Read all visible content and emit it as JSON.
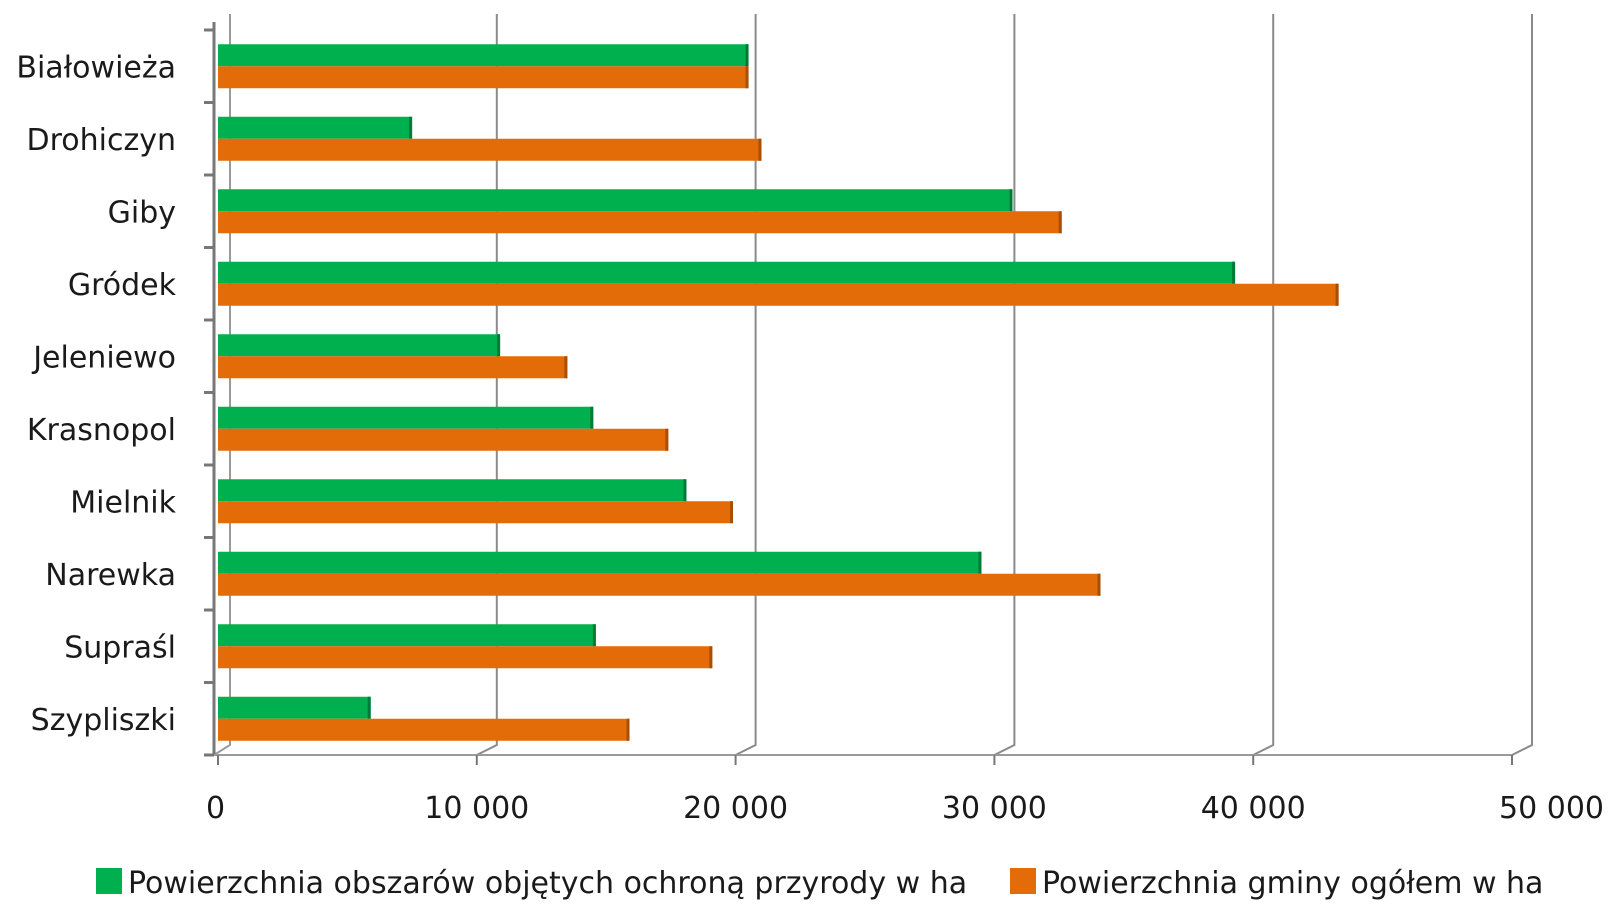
{
  "chart_data": {
    "type": "bar",
    "orientation": "horizontal",
    "title": "",
    "xlabel": "",
    "ylabel": "",
    "categories": [
      "Białowieża",
      "Drohiczyn",
      "Giby",
      "Gródek",
      "Jeleniewo",
      "Krasnopol",
      "Mielnik",
      "Narewka",
      "Supraśl",
      "Szypliszki"
    ],
    "series": [
      {
        "name": "Powierzchnia obszarów objętych ochroną przyrody w ha",
        "color": "#00b04f",
        "values": [
          20500,
          7500,
          30700,
          39300,
          10900,
          14500,
          18100,
          29500,
          14600,
          5900
        ]
      },
      {
        "name": "Powierzchnia gminy ogółem w ha",
        "color": "#e36c09",
        "values": [
          20500,
          21000,
          32600,
          43300,
          13500,
          17400,
          19900,
          34100,
          19100,
          15900
        ]
      }
    ],
    "xlim": [
      0,
      50000
    ],
    "ticks": [
      "0",
      "10 000",
      "20 000",
      "30 000",
      "40 000",
      "50 000"
    ],
    "tick_values": [
      0,
      10000,
      20000,
      30000,
      40000,
      50000
    ],
    "grid": true,
    "legend": "bottom"
  }
}
